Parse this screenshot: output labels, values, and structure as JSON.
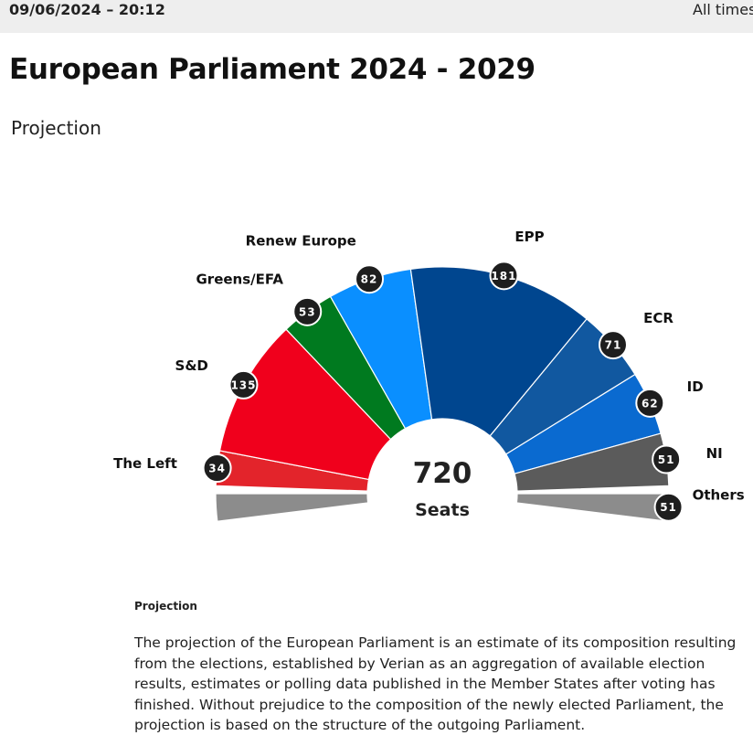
{
  "header": {
    "timestamp": "09/06/2024 – 20:12",
    "timezone_note": "All times"
  },
  "page_title": "European Parliament 2024 - 2029",
  "subtitle": "Projection",
  "chart_data": {
    "type": "pie",
    "variant": "hemicycle",
    "total": {
      "value": "720",
      "label": "Seats"
    },
    "groups": [
      {
        "name": "The Left",
        "seats": 34,
        "color": "#e3242b"
      },
      {
        "name": "S&D",
        "seats": 135,
        "color": "#f0001c"
      },
      {
        "name": "Greens/EFA",
        "seats": 53,
        "color": "#007a1f"
      },
      {
        "name": "Renew Europe",
        "seats": 82,
        "color": "#0a8fff"
      },
      {
        "name": "EPP",
        "seats": 181,
        "color": "#00468f"
      },
      {
        "name": "ECR",
        "seats": 71,
        "color": "#1158a0"
      },
      {
        "name": "ID",
        "seats": 62,
        "color": "#0a6ad0"
      },
      {
        "name": "NI",
        "seats": 51,
        "color": "#5b5b5b"
      }
    ],
    "separate_groups": [
      {
        "name": "Others",
        "seats": 51,
        "color": "#8c8c8c",
        "side": "right"
      },
      {
        "name": "",
        "seats": 51,
        "color": "#8c8c8c",
        "side": "left"
      }
    ]
  },
  "note": {
    "heading": "Projection",
    "text": "The projection of the European Parliament is an estimate of its composition resulting from the elections, established by Verian as an aggregation of available election results, estimates or polling data published in the Member States after voting has finished. Without prejudice to the composition of the newly elected Parliament, the projection is based on the structure of the outgoing Parliament."
  }
}
